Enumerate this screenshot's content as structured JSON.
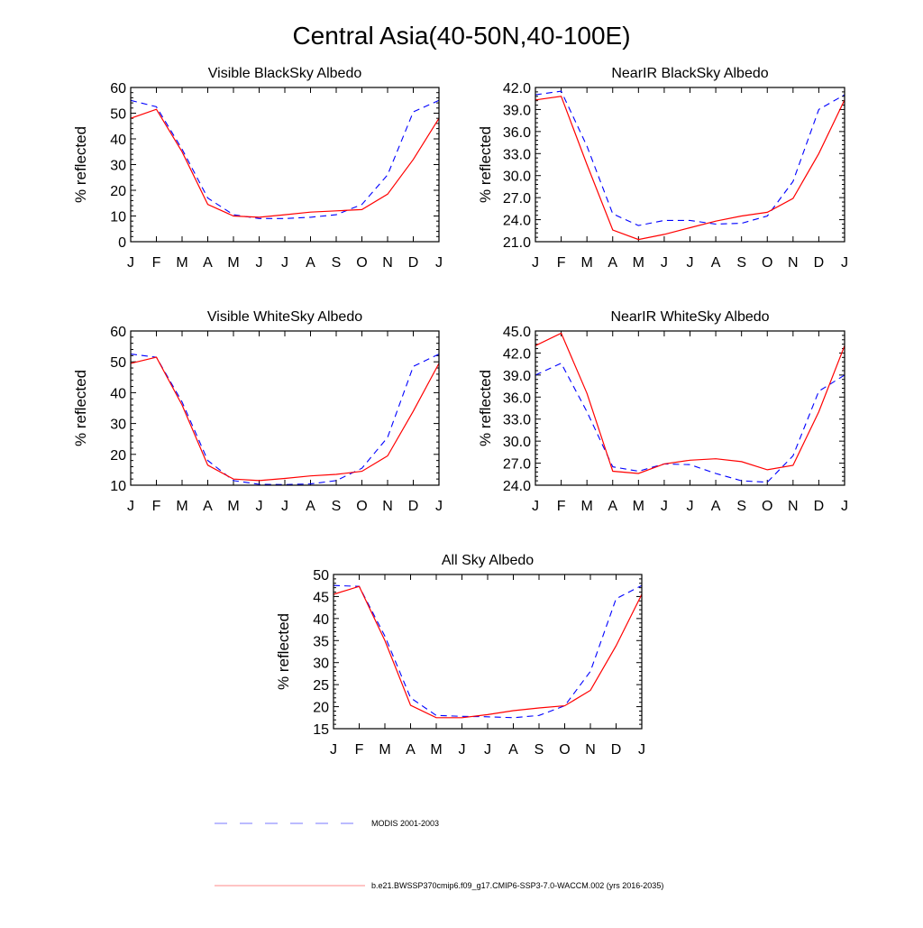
{
  "title": "Central Asia(40-50N,40-100E)",
  "legend": {
    "placement": "bottom",
    "items": [
      {
        "label": "MODIS 2001-2003",
        "color": "#0000ff",
        "dash": true
      },
      {
        "label": "b.e21.BWSSP370cmip6.f09_g17.CMIP6-SSP3-7.0-WACCM.002 (yrs 2016-2035)",
        "color": "#ff0000",
        "dash": false
      }
    ]
  },
  "chart_data": [
    {
      "type": "line",
      "title": "Visible BlackSky Albedo",
      "ylabel": "% reflected",
      "categories": [
        "J",
        "F",
        "M",
        "A",
        "M",
        "J",
        "J",
        "A",
        "S",
        "O",
        "N",
        "D",
        "J"
      ],
      "ylim": [
        0,
        60
      ],
      "yticks": [
        "0",
        "10",
        "20",
        "30",
        "40",
        "50",
        "60"
      ],
      "series": [
        {
          "name": "MODIS 2001-2003",
          "values": [
            55,
            52.5,
            36,
            17,
            10.5,
            9,
            9,
            9.5,
            10.5,
            14.5,
            26,
            50.5,
            55
          ]
        },
        {
          "name": "b.e21.BWSSP370cmip6.f09_g17.CMIP6-SSP3-7.0-WACCM.002 (yrs 2016-2035)",
          "values": [
            48,
            51.5,
            35,
            14.5,
            10,
            9.5,
            10.5,
            11.5,
            12,
            12.5,
            18.5,
            32,
            48
          ]
        }
      ]
    },
    {
      "type": "line",
      "title": "NearIR BlackSky Albedo",
      "ylabel": "% reflected",
      "categories": [
        "J",
        "F",
        "M",
        "A",
        "M",
        "J",
        "J",
        "A",
        "S",
        "O",
        "N",
        "D",
        "J"
      ],
      "ylim": [
        21,
        42
      ],
      "yticks": [
        "21.0",
        "24.0",
        "27.0",
        "30.0",
        "33.0",
        "36.0",
        "39.0",
        "42.0"
      ],
      "series": [
        {
          "name": "MODIS 2001-2003",
          "values": [
            41.0,
            41.5,
            34.0,
            24.8,
            23.2,
            23.9,
            23.9,
            23.4,
            23.5,
            24.5,
            29.2,
            39.0,
            41.0
          ]
        },
        {
          "name": "b.e21.BWSSP370cmip6.f09_g17.CMIP6-SSP3-7.0-WACCM.002 (yrs 2016-2035)",
          "values": [
            40.3,
            40.8,
            31.5,
            22.6,
            21.3,
            22.0,
            22.9,
            23.8,
            24.5,
            25.0,
            26.9,
            33.0,
            40.3
          ]
        }
      ]
    },
    {
      "type": "line",
      "title": "Visible WhiteSky Albedo",
      "ylabel": "% reflected",
      "categories": [
        "J",
        "F",
        "M",
        "A",
        "M",
        "J",
        "J",
        "A",
        "S",
        "O",
        "N",
        "D",
        "J"
      ],
      "ylim": [
        10,
        60
      ],
      "yticks": [
        "10",
        "20",
        "30",
        "40",
        "50",
        "60"
      ],
      "series": [
        {
          "name": "MODIS 2001-2003",
          "values": [
            52.5,
            51.5,
            37,
            18,
            11.5,
            10.3,
            10.2,
            10.4,
            11.5,
            15.5,
            25.5,
            48.5,
            52.5
          ]
        },
        {
          "name": "b.e21.BWSSP370cmip6.f09_g17.CMIP6-SSP3-7.0-WACCM.002 (yrs 2016-2035)",
          "values": [
            49.5,
            51.5,
            36,
            16.5,
            12,
            11.5,
            12.2,
            13,
            13.5,
            14.5,
            19.5,
            34,
            49.5
          ]
        }
      ]
    },
    {
      "type": "line",
      "title": "NearIR WhiteSky Albedo",
      "ylabel": "% reflected",
      "categories": [
        "J",
        "F",
        "M",
        "A",
        "M",
        "J",
        "J",
        "A",
        "S",
        "O",
        "N",
        "D",
        "J"
      ],
      "ylim": [
        24,
        45
      ],
      "yticks": [
        "24.0",
        "27.0",
        "30.0",
        "33.0",
        "36.0",
        "39.0",
        "42.0",
        "45.0"
      ],
      "series": [
        {
          "name": "MODIS 2001-2003",
          "values": [
            39,
            40.6,
            34,
            26.5,
            25.9,
            26.9,
            26.8,
            25.6,
            24.6,
            24.4,
            28,
            36.8,
            39
          ]
        },
        {
          "name": "b.e21.BWSSP370cmip6.f09_g17.CMIP6-SSP3-7.0-WACCM.002 (yrs 2016-2035)",
          "values": [
            43,
            44.7,
            36.5,
            25.9,
            25.6,
            26.9,
            27.4,
            27.6,
            27.2,
            26.1,
            26.7,
            34,
            43
          ]
        }
      ]
    },
    {
      "type": "line",
      "title": "All Sky Albedo",
      "ylabel": "% reflected",
      "categories": [
        "J",
        "F",
        "M",
        "A",
        "M",
        "J",
        "J",
        "A",
        "S",
        "O",
        "N",
        "D",
        "J"
      ],
      "ylim": [
        15,
        50
      ],
      "yticks": [
        "15",
        "20",
        "25",
        "30",
        "35",
        "40",
        "45",
        "50"
      ],
      "series": [
        {
          "name": "MODIS 2001-2003",
          "values": [
            47.5,
            47.3,
            36,
            22,
            18,
            17.8,
            17.7,
            17.5,
            18,
            20.2,
            28,
            44.5,
            47.5
          ]
        },
        {
          "name": "b.e21.BWSSP370cmip6.f09_g17.CMIP6-SSP3-7.0-WACCM.002 (yrs 2016-2035)",
          "values": [
            45.5,
            47.3,
            35,
            20.3,
            17.5,
            17.5,
            18.2,
            19.1,
            19.7,
            20.2,
            23.7,
            33.8,
            45.5
          ]
        }
      ]
    }
  ]
}
